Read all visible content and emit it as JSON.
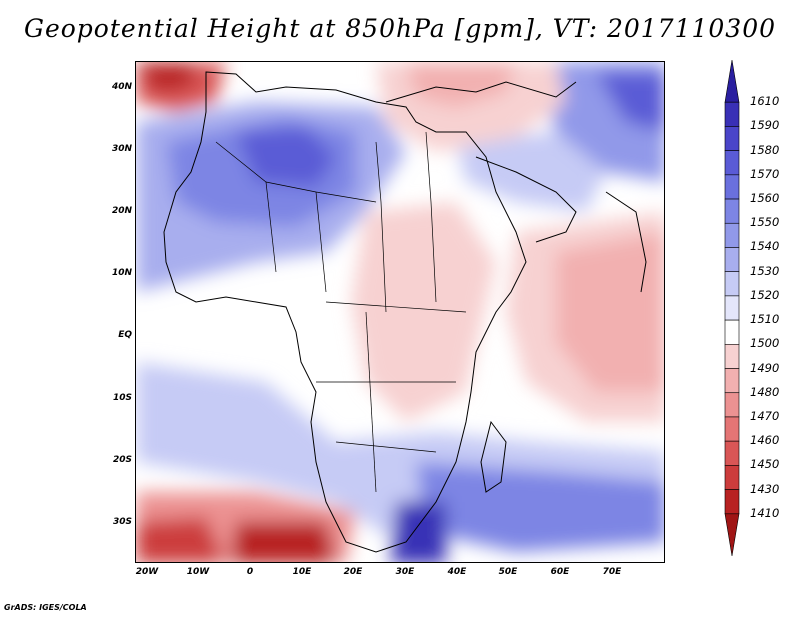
{
  "title": "Geopotential Height at 850hPa [gpm], VT: 2017110300",
  "footer": "GrADS: IGES/COLA",
  "axes": {
    "y_labels": [
      "40N",
      "30N",
      "20N",
      "10N",
      "EQ",
      "10S",
      "20S",
      "30S"
    ],
    "x_labels": [
      "20W",
      "10W",
      "0",
      "10E",
      "20E",
      "30E",
      "40E",
      "50E",
      "60E",
      "70E"
    ]
  },
  "colorbar": {
    "levels": [
      "1610",
      "1590",
      "1580",
      "1570",
      "1560",
      "1550",
      "1540",
      "1530",
      "1520",
      "1510",
      "1500",
      "1490",
      "1480",
      "1470",
      "1460",
      "1450",
      "1430",
      "1410"
    ],
    "colors": [
      "#2a1fa0",
      "#3930b6",
      "#4a45c9",
      "#5a5bd6",
      "#6a70de",
      "#7d85e4",
      "#9199e9",
      "#a8aeee",
      "#c6cbf5",
      "#e4e6fb",
      "#ffffff",
      "#f7d1d1",
      "#f2b0b0",
      "#ec9292",
      "#e47575",
      "#d95656",
      "#cc3c3c",
      "#b82222",
      "#a01515"
    ]
  }
}
